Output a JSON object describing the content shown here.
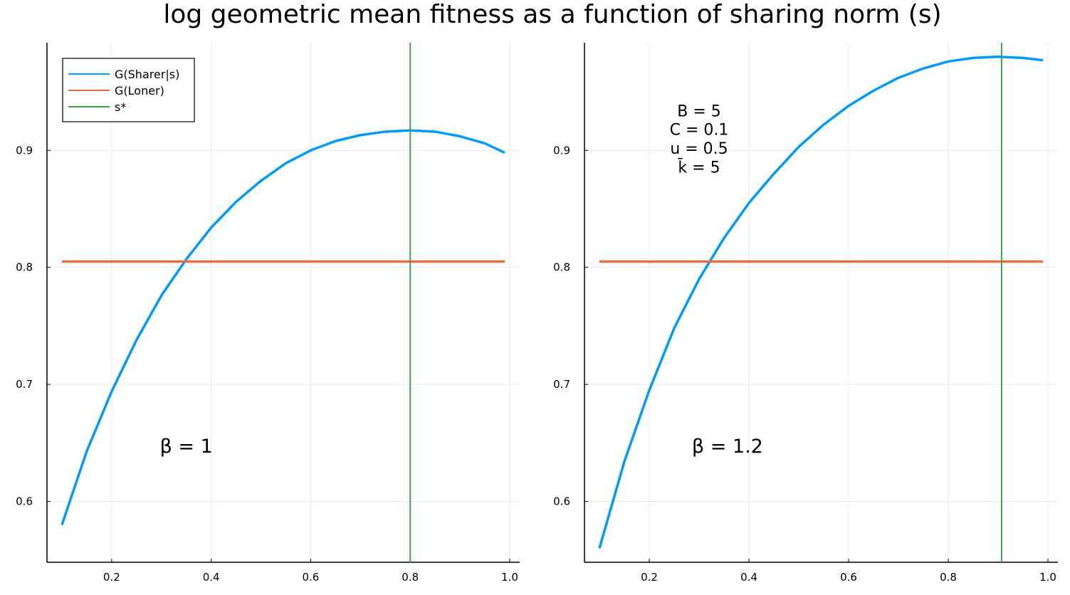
{
  "figure_title": "log geometric mean fitness as a function of sharing norm (s)",
  "colors": {
    "sharer": "#009af9",
    "loner": "#e26f46",
    "s_star": "#3da44d",
    "grid": "#ebebeb",
    "axis": "#000000"
  },
  "legend": {
    "placement": "top-left",
    "entries": [
      "G(Sharer|s)",
      "G(Loner)",
      "s*"
    ]
  },
  "chart_data": [
    {
      "type": "line",
      "xlim": [
        0.07,
        1.02
      ],
      "ylim": [
        0.548,
        0.992
      ],
      "xticks": [
        0.2,
        0.4,
        0.6,
        0.8,
        1.0
      ],
      "xtick_labels": [
        "0.2",
        "0.4",
        "0.6",
        "0.8",
        "1.0"
      ],
      "yticks": [
        0.6,
        0.7,
        0.8,
        0.9
      ],
      "ytick_labels": [
        "0.6",
        "0.7",
        "0.8",
        "0.9"
      ],
      "grid": true,
      "annotations": [
        {
          "text": "β = 1",
          "x": 0.35,
          "y": 0.647
        }
      ],
      "series": [
        {
          "name": "G(Sharer|s)",
          "x": [
            0.1,
            0.15,
            0.2,
            0.25,
            0.3,
            0.35,
            0.4,
            0.45,
            0.5,
            0.55,
            0.6,
            0.65,
            0.7,
            0.75,
            0.8,
            0.85,
            0.9,
            0.95,
            0.99
          ],
          "y": [
            0.58,
            0.643,
            0.694,
            0.738,
            0.776,
            0.807,
            0.834,
            0.856,
            0.874,
            0.889,
            0.9,
            0.908,
            0.913,
            0.916,
            0.917,
            0.916,
            0.912,
            0.906,
            0.898
          ]
        },
        {
          "name": "G(Loner)",
          "x": [
            0.1,
            0.99
          ],
          "y": [
            0.805,
            0.805
          ]
        }
      ],
      "vline": {
        "name": "s*",
        "x": 0.8
      }
    },
    {
      "type": "line",
      "xlim": [
        0.07,
        1.02
      ],
      "ylim": [
        0.548,
        0.992
      ],
      "xticks": [
        0.2,
        0.4,
        0.6,
        0.8,
        1.0
      ],
      "xtick_labels": [
        "0.2",
        "0.4",
        "0.6",
        "0.8",
        "1.0"
      ],
      "yticks": [
        0.6,
        0.7,
        0.8,
        0.9
      ],
      "ytick_labels": [
        "0.6",
        "0.7",
        "0.8",
        "0.9"
      ],
      "grid": true,
      "annotations": [
        {
          "text": "β = 1.2",
          "x": 0.357,
          "y": 0.647
        },
        {
          "text": "B = 5",
          "x": 0.3,
          "y": 0.934
        },
        {
          "text": "C = 0.1",
          "x": 0.3,
          "y": 0.918
        },
        {
          "text": "u = 0.5",
          "x": 0.3,
          "y": 0.902
        },
        {
          "text": "k̄ = 5",
          "x": 0.3,
          "y": 0.886
        }
      ],
      "series": [
        {
          "name": "G(Sharer|s)",
          "x": [
            0.1,
            0.15,
            0.2,
            0.25,
            0.3,
            0.35,
            0.4,
            0.45,
            0.5,
            0.55,
            0.6,
            0.65,
            0.7,
            0.75,
            0.8,
            0.85,
            0.9,
            0.95,
            0.99
          ],
          "y": [
            0.56,
            0.634,
            0.695,
            0.748,
            0.79,
            0.825,
            0.855,
            0.88,
            0.903,
            0.922,
            0.938,
            0.951,
            0.962,
            0.97,
            0.976,
            0.979,
            0.98,
            0.979,
            0.977
          ]
        },
        {
          "name": "G(Loner)",
          "x": [
            0.1,
            0.99
          ],
          "y": [
            0.805,
            0.805
          ]
        }
      ],
      "vline": {
        "name": "s*",
        "x": 0.907
      }
    }
  ]
}
